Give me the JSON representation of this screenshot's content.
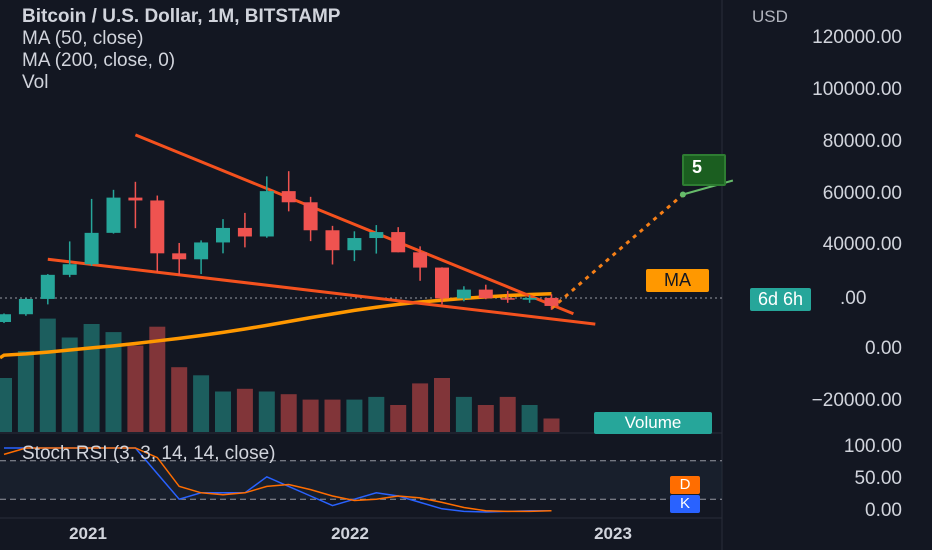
{
  "header": {
    "title": "Bitcoin / U.S. Dollar, 1M, BITSTAMP",
    "ma50": "MA (50, close)",
    "ma200": "MA (200, close, 0)",
    "vol": "Vol"
  },
  "axis": {
    "currency": "USD",
    "price_ticks": [
      "120000.00",
      "100000.00",
      "80000.00",
      "60000.00",
      "40000.00",
      "0.00",
      "−20000.00"
    ],
    "price_values": [
      120000,
      100000,
      80000,
      60000,
      40000,
      0,
      -20000
    ],
    "rsi_ticks": [
      "100.00",
      "50.00",
      "0.00"
    ],
    "time_ticks": [
      "2021",
      "2022",
      "2023"
    ]
  },
  "badges": {
    "ma": "MA",
    "countdown": "6d 6h",
    "countdown_price_suffix": ".00",
    "volume": "Volume",
    "d": "D",
    "k": "K",
    "target": "5"
  },
  "rsi": {
    "label": "Stoch RSI (3, 3, 14, 14, close)"
  },
  "colors": {
    "background": "#131722",
    "up": "#26a69a",
    "down": "#ef5350",
    "ma50": "#f57f17",
    "ma200": "#ff9800",
    "trendline": "#f4511e",
    "rsi_k": "#2962ff",
    "rsi_d": "#ff6d00",
    "countdown": "#26a69a",
    "ma_badge": "#ff9800"
  },
  "chart_data": {
    "type": "candlestick",
    "title": "Bitcoin / U.S. Dollar, 1M, BITSTAMP",
    "ylabel": "USD",
    "ylim": [
      -25000,
      132000
    ],
    "x": [
      "2020-10",
      "2020-11",
      "2020-12",
      "2021-01",
      "2021-02",
      "2021-03",
      "2021-04",
      "2021-05",
      "2021-06",
      "2021-07",
      "2021-08",
      "2021-09",
      "2021-10",
      "2021-11",
      "2021-12",
      "2022-01",
      "2022-02",
      "2022-03",
      "2022-04",
      "2022-05",
      "2022-06",
      "2022-07",
      "2022-08",
      "2022-09",
      "2022-10",
      "2022-11"
    ],
    "ohlc": [
      [
        10800,
        14100,
        10400,
        13800
      ],
      [
        13800,
        19900,
        13200,
        19700
      ],
      [
        19700,
        29300,
        17600,
        29000
      ],
      [
        29000,
        41900,
        28100,
        33100
      ],
      [
        33100,
        58300,
        32400,
        45200
      ],
      [
        45200,
        61800,
        44900,
        58800
      ],
      [
        58800,
        64900,
        47000,
        57700
      ],
      [
        57700,
        59600,
        30000,
        37300
      ],
      [
        37300,
        41300,
        28800,
        35000
      ],
      [
        35000,
        42300,
        29300,
        41500
      ],
      [
        41500,
        50500,
        37300,
        47100
      ],
      [
        47100,
        52900,
        39600,
        43800
      ],
      [
        43800,
        67000,
        43300,
        61300
      ],
      [
        61300,
        69000,
        53500,
        57000
      ],
      [
        57000,
        59100,
        42000,
        46200
      ],
      [
        46200,
        47900,
        33000,
        38500
      ],
      [
        38500,
        45800,
        34300,
        43200
      ],
      [
        43200,
        48200,
        37200,
        45500
      ],
      [
        45500,
        47400,
        37700,
        37700
      ],
      [
        37700,
        40000,
        26700,
        31800
      ],
      [
        31800,
        31900,
        17600,
        19900
      ],
      [
        19900,
        24600,
        18800,
        23300
      ],
      [
        23300,
        25200,
        19600,
        20000
      ],
      [
        20000,
        22800,
        18200,
        19400
      ],
      [
        19400,
        21100,
        18200,
        20100
      ],
      [
        20100,
        21500,
        15500,
        17000
      ]
    ],
    "volume": [
      2,
      3,
      4.2,
      3.5,
      4,
      3.7,
      3.2,
      3.9,
      2.4,
      2.1,
      1.5,
      1.6,
      1.5,
      1.4,
      1.2,
      1.2,
      1.2,
      1.3,
      1.0,
      1.8,
      2.0,
      1.3,
      1.0,
      1.3,
      1.0,
      0.5
    ],
    "ma50": [
      -2000,
      -1500,
      -800,
      0,
      800,
      1600,
      2500,
      3500,
      4500,
      5600,
      6800,
      8100,
      9500,
      11000,
      12500,
      13900,
      15300,
      16500,
      17600,
      18500,
      19200,
      19900,
      20500,
      21000,
      21400,
      21700
    ],
    "stoch_rsi_k": [
      100,
      100,
      100,
      100,
      100,
      100,
      100,
      60,
      20,
      30,
      30,
      30,
      55,
      40,
      25,
      10,
      20,
      30,
      25,
      15,
      5,
      1,
      0,
      1,
      2,
      2
    ],
    "stoch_rsi_d": [
      90,
      100,
      100,
      100,
      100,
      100,
      100,
      85,
      40,
      30,
      27,
      30,
      40,
      43,
      35,
      25,
      18,
      20,
      25,
      22,
      15,
      7,
      2,
      1,
      1,
      2
    ],
    "annotations": [
      {
        "type": "trendline",
        "from": [
          "2021-04",
          83000
        ],
        "to": [
          "2022-12",
          14000
        ]
      },
      {
        "type": "trendline",
        "from": [
          "2020-12",
          35000
        ],
        "to": [
          "2023-01",
          10000
        ]
      },
      {
        "type": "projection",
        "from": [
          "2022-11",
          16000
        ],
        "to": [
          "2023-05",
          60000
        ],
        "label": "5"
      }
    ]
  }
}
